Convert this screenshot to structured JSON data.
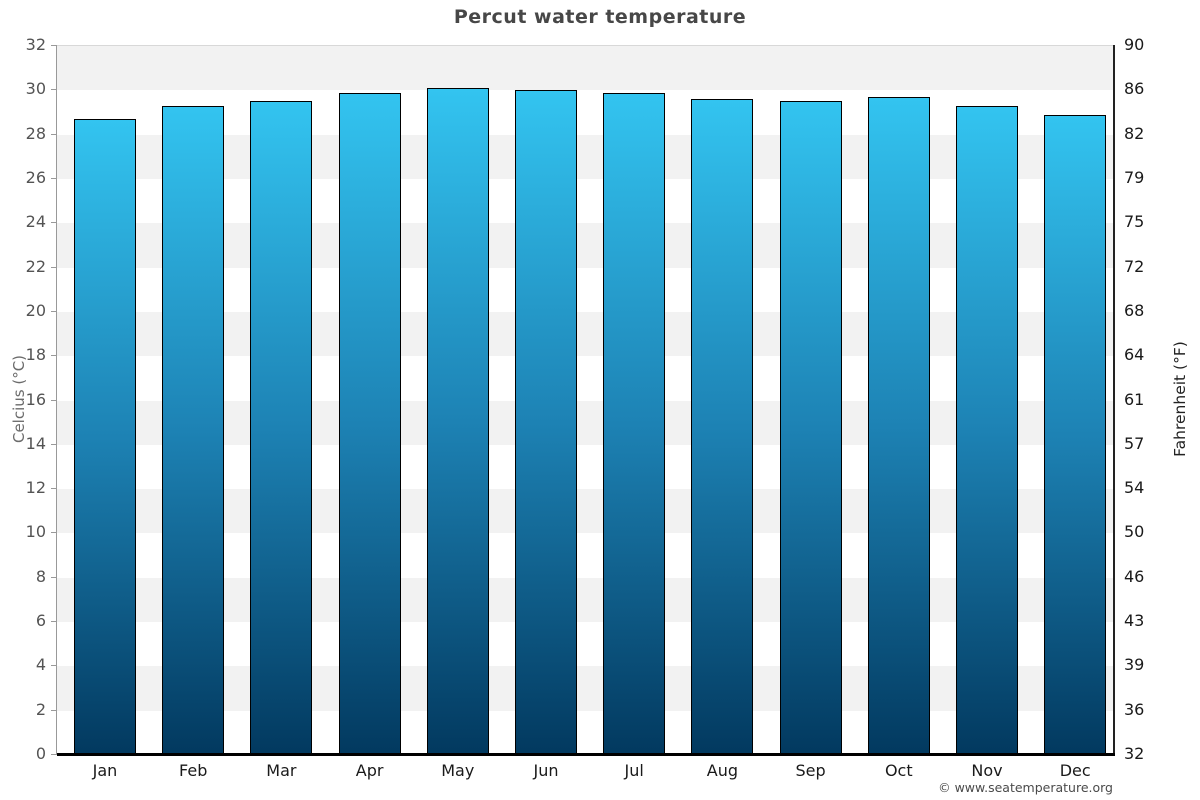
{
  "title": "Percut water temperature",
  "footer": {
    "copyright": "© www.seatemperature.org"
  },
  "left_axis": {
    "label": "Celcius (°C)",
    "ticks": [
      0,
      2,
      4,
      6,
      8,
      10,
      12,
      14,
      16,
      18,
      20,
      22,
      24,
      26,
      28,
      30,
      32
    ]
  },
  "right_axis": {
    "label": "Fahrenheit (°F)",
    "ticks": [
      32,
      36,
      39,
      43,
      46,
      50,
      54,
      57,
      61,
      64,
      68,
      72,
      75,
      79,
      82,
      86,
      90
    ]
  },
  "colors": {
    "bar_top": "#33c4f0",
    "bar_mid": "#1d82b4",
    "bar_bottom": "#02395f",
    "bar_border": "#000000",
    "band_gray": "#f2f2f2",
    "band_white": "#ffffff",
    "title_color": "#474747"
  },
  "chart_data": {
    "type": "bar",
    "title": "Percut water temperature",
    "categories": [
      "Jan",
      "Feb",
      "Mar",
      "Apr",
      "May",
      "Jun",
      "Jul",
      "Aug",
      "Sep",
      "Oct",
      "Nov",
      "Dec"
    ],
    "values": [
      28.7,
      29.3,
      29.5,
      29.9,
      30.1,
      30.0,
      29.9,
      29.6,
      29.5,
      29.7,
      29.3,
      28.9
    ],
    "unit": "°C",
    "xlabel": "",
    "ylabel": "Celcius (°C)",
    "ylabel_right": "Fahrenheit (°F)",
    "ylim": [
      0,
      32
    ],
    "ylim_right": [
      32,
      90
    ],
    "grid": "horizontal-bands-every-2C",
    "legend": "none",
    "bar_gradient_top_to_bottom": [
      "#33c4f0",
      "#1d82b4",
      "#02395f"
    ]
  }
}
